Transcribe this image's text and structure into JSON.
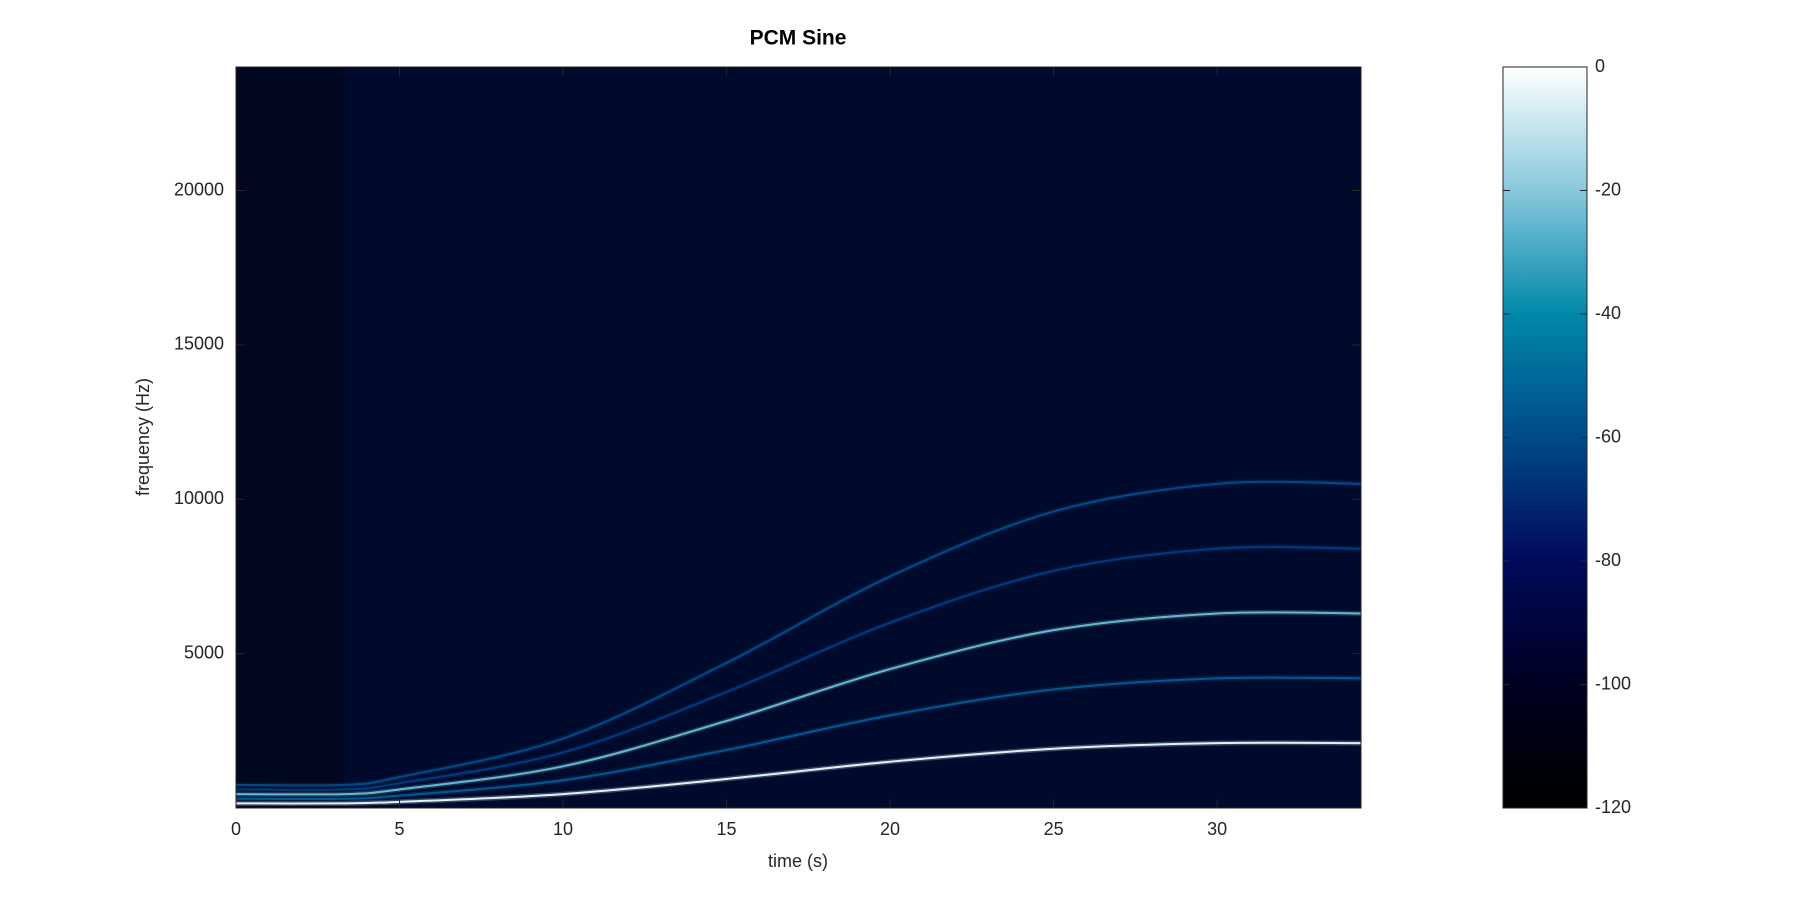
{
  "chart_data": {
    "type": "spectrogram",
    "title": "PCM Sine",
    "x_label": "time (s)",
    "y_label": "frequency (Hz)",
    "x": [
      0,
      3.3,
      5,
      10,
      15,
      20,
      25,
      30,
      34.4
    ],
    "series": [
      {
        "level": -5,
        "values": [
          150,
          150,
          200,
          450,
          940,
          1500,
          1920,
          2100,
          2100
        ]
      },
      {
        "level": -55,
        "values": [
          300,
          300,
          400,
          900,
          1880,
          3000,
          3840,
          4200,
          4200
        ]
      },
      {
        "level": -25,
        "values": [
          450,
          450,
          600,
          1350,
          2820,
          4500,
          5760,
          6300,
          6300
        ]
      },
      {
        "level": -65,
        "values": [
          600,
          600,
          800,
          1800,
          3760,
          6000,
          7680,
          8400,
          8400
        ]
      },
      {
        "level": -60,
        "values": [
          750,
          750,
          1000,
          2250,
          4700,
          7500,
          9600,
          10500,
          10500
        ]
      }
    ],
    "xlim": [
      0,
      34.4
    ],
    "ylim": [
      0,
      24000
    ],
    "xticks": [
      0,
      5,
      10,
      15,
      20,
      25,
      30
    ],
    "yticks": [
      5000,
      10000,
      15000,
      20000
    ],
    "clim": [
      -120,
      0
    ],
    "cticks": [
      0,
      -20,
      -40,
      -60,
      -80,
      -100,
      -120
    ],
    "colormap": [
      "#000000",
      "#000022",
      "#000a5a",
      "#004a88",
      "#0088aa",
      "#88c8dc",
      "#ffffff"
    ],
    "grid": false
  }
}
